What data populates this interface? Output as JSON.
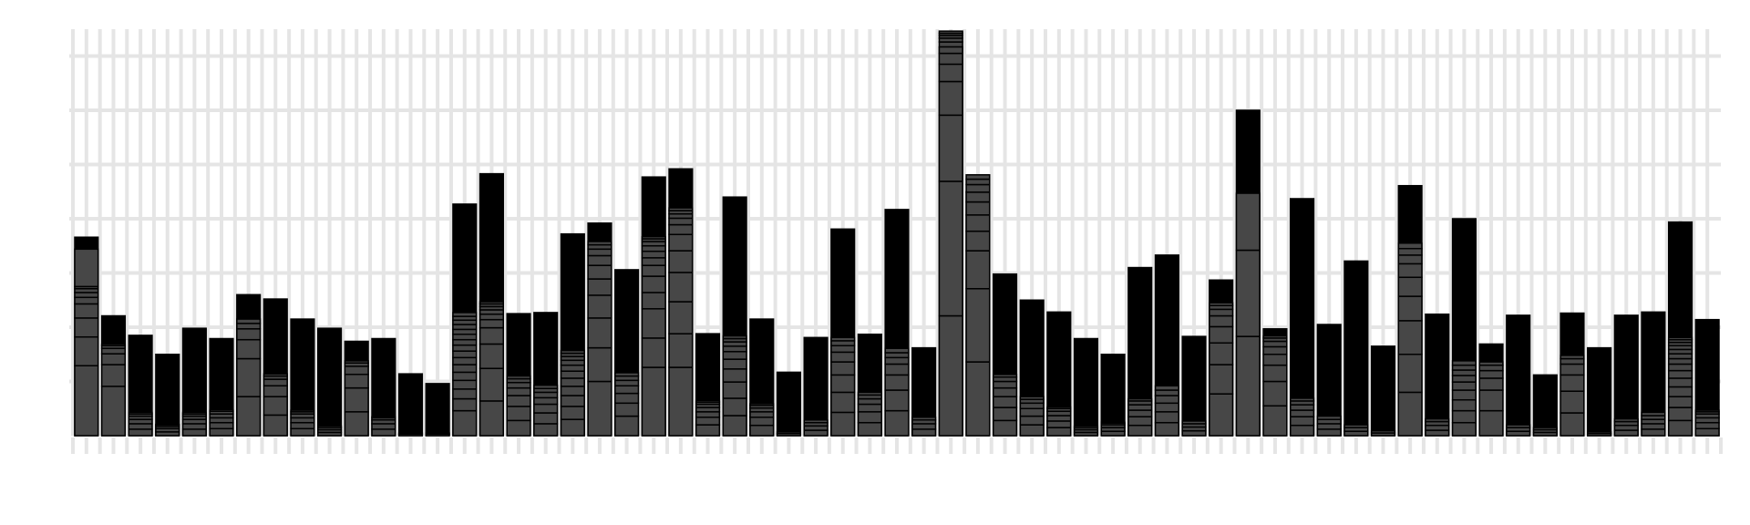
{
  "colors": {
    "background": "#ffffff",
    "grid": "#e5e5e5",
    "bar_top": "#000000",
    "bar_bottom": "#474747",
    "segment_stroke": "#000000"
  },
  "chart_data": {
    "type": "bar",
    "stacked": true,
    "grid": true,
    "legend": "none",
    "title": "",
    "xlabel": "",
    "ylabel": "",
    "ylim": [
      0,
      7.3
    ],
    "bars": [
      {
        "total": 3.66,
        "grey": 3.44,
        "segments": [
          1.29,
          0.53,
          0.35,
          0.26,
          0.12,
          0.09,
          0.07,
          0.04
        ]
      },
      {
        "total": 2.21,
        "grey": 1.69,
        "segments": [
          0.91,
          0.4,
          0.2,
          0.1,
          0.05,
          0.03
        ]
      },
      {
        "total": 1.85,
        "grey": 0.43,
        "segments": [
          0.12,
          0.1,
          0.08,
          0.06,
          0.04,
          0.03
        ]
      },
      {
        "total": 1.5,
        "grey": 0.21,
        "segments": [
          0.07,
          0.06,
          0.04,
          0.03
        ]
      },
      {
        "total": 1.98,
        "grey": 0.43,
        "segments": [
          0.12,
          0.1,
          0.08,
          0.06,
          0.04,
          0.03
        ]
      },
      {
        "total": 1.79,
        "grey": 0.48,
        "segments": [
          0.13,
          0.11,
          0.09,
          0.07,
          0.05,
          0.03
        ]
      },
      {
        "total": 2.6,
        "grey": 2.15,
        "segments": [
          0.72,
          0.7,
          0.35,
          0.2,
          0.1,
          0.08
        ]
      },
      {
        "total": 2.52,
        "grey": 1.14,
        "segments": [
          0.38,
          0.34,
          0.2,
          0.12,
          0.06,
          0.04
        ]
      },
      {
        "total": 2.15,
        "grey": 0.47,
        "segments": [
          0.13,
          0.11,
          0.09,
          0.07,
          0.04,
          0.03
        ]
      },
      {
        "total": 1.98,
        "grey": 0.18,
        "segments": [
          0.06,
          0.05,
          0.04,
          0.03
        ]
      },
      {
        "total": 1.74,
        "grey": 1.38,
        "segments": [
          0.44,
          0.44,
          0.25,
          0.15,
          0.06,
          0.04
        ]
      },
      {
        "total": 1.79,
        "grey": 0.35,
        "segments": [
          0.12,
          0.1,
          0.07,
          0.04
        ]
      },
      {
        "total": 1.14,
        "grey": 0.05,
        "segments": [
          0.03,
          0.02
        ]
      },
      {
        "total": 0.96,
        "grey": 0.05,
        "segments": [
          0.03,
          0.02
        ]
      },
      {
        "total": 4.27,
        "grey": 2.15,
        "segments": [
          0.46,
          0.22,
          0.18,
          0.16,
          0.15,
          0.14,
          0.13,
          0.12,
          0.11,
          0.1,
          0.1,
          0.09,
          0.09,
          0.08,
          0.07,
          0.07
        ]
      },
      {
        "total": 4.83,
        "grey": 2.47,
        "segments": [
          0.64,
          0.6,
          0.45,
          0.3,
          0.15,
          0.1,
          0.08,
          0.06,
          0.05,
          0.04
        ]
      },
      {
        "total": 2.25,
        "grey": 1.1,
        "segments": [
          0.28,
          0.26,
          0.2,
          0.14,
          0.1,
          0.07,
          0.05
        ]
      },
      {
        "total": 2.27,
        "grey": 0.93,
        "segments": [
          0.22,
          0.2,
          0.16,
          0.12,
          0.1,
          0.07,
          0.06
        ]
      },
      {
        "total": 3.72,
        "grey": 1.57,
        "segments": [
          0.3,
          0.24,
          0.2,
          0.17,
          0.15,
          0.13,
          0.11,
          0.09,
          0.07,
          0.06,
          0.05
        ]
      },
      {
        "total": 3.92,
        "grey": 3.58,
        "segments": [
          1.0,
          0.62,
          0.55,
          0.42,
          0.3,
          0.25,
          0.18,
          0.12,
          0.08,
          0.06
        ]
      },
      {
        "total": 3.06,
        "grey": 1.16,
        "segments": [
          0.36,
          0.24,
          0.18,
          0.14,
          0.1,
          0.08,
          0.06
        ]
      },
      {
        "total": 4.77,
        "grey": 3.67,
        "segments": [
          1.26,
          0.54,
          0.54,
          0.3,
          0.3,
          0.2,
          0.14,
          0.12,
          0.1,
          0.08,
          0.05,
          0.04
        ]
      },
      {
        "total": 4.92,
        "grey": 4.2,
        "segments": [
          1.26,
          0.62,
          0.59,
          0.54,
          0.4,
          0.3,
          0.18,
          0.12,
          0.08,
          0.06,
          0.05
        ]
      },
      {
        "total": 1.88,
        "grey": 0.65,
        "segments": [
          0.2,
          0.14,
          0.1,
          0.08,
          0.06,
          0.04,
          0.03
        ]
      },
      {
        "total": 4.4,
        "grey": 1.84,
        "segments": [
          0.37,
          0.32,
          0.3,
          0.24,
          0.18,
          0.14,
          0.1,
          0.08,
          0.06,
          0.05
        ]
      },
      {
        "total": 2.15,
        "grey": 0.59,
        "segments": [
          0.19,
          0.15,
          0.1,
          0.07,
          0.05,
          0.03
        ]
      },
      {
        "total": 1.17,
        "grey": 0.07,
        "segments": [
          0.04,
          0.03
        ]
      },
      {
        "total": 1.81,
        "grey": 0.29,
        "segments": [
          0.1,
          0.08,
          0.06,
          0.05
        ]
      },
      {
        "total": 3.81,
        "grey": 1.81,
        "segments": [
          0.43,
          0.37,
          0.32,
          0.24,
          0.18,
          0.12,
          0.09,
          0.06
        ]
      },
      {
        "total": 1.87,
        "grey": 0.8,
        "segments": [
          0.24,
          0.2,
          0.14,
          0.1,
          0.07,
          0.05
        ]
      },
      {
        "total": 4.17,
        "grey": 1.61,
        "segments": [
          0.46,
          0.38,
          0.28,
          0.2,
          0.12,
          0.09,
          0.08
        ]
      },
      {
        "total": 1.62,
        "grey": 0.34,
        "segments": [
          0.12,
          0.1,
          0.07,
          0.05
        ]
      },
      {
        "total": 7.16,
        "grey": 7.16,
        "segments": [
          2.21,
          2.48,
          1.22,
          0.62,
          0.32,
          0.2,
          0.12,
          0.09,
          0.07,
          0.05,
          0.04,
          0.04
        ]
      },
      {
        "total": 4.5,
        "grey": 4.21,
        "segments": [
          1.36,
          1.35,
          0.7,
          0.36,
          0.3,
          0.24,
          0.18,
          0.14,
          0.1,
          0.08
        ]
      },
      {
        "total": 2.98,
        "grey": 1.11,
        "segments": [
          0.28,
          0.24,
          0.2,
          0.16,
          0.12,
          0.08,
          0.05
        ]
      },
      {
        "total": 2.5,
        "grey": 0.7,
        "segments": [
          0.2,
          0.16,
          0.14,
          0.1,
          0.07,
          0.05
        ]
      },
      {
        "total": 2.28,
        "grey": 0.53,
        "segments": [
          0.15,
          0.12,
          0.1,
          0.08,
          0.05,
          0.03
        ]
      },
      {
        "total": 1.79,
        "grey": 0.18,
        "segments": [
          0.06,
          0.05,
          0.04,
          0.03
        ]
      },
      {
        "total": 1.5,
        "grey": 0.25,
        "segments": [
          0.08,
          0.07,
          0.05,
          0.03
        ]
      },
      {
        "total": 3.1,
        "grey": 0.68,
        "segments": [
          0.19,
          0.16,
          0.12,
          0.1,
          0.07,
          0.04
        ]
      },
      {
        "total": 3.33,
        "grey": 0.92,
        "segments": [
          0.24,
          0.2,
          0.16,
          0.14,
          0.1,
          0.08
        ]
      },
      {
        "total": 1.83,
        "grey": 0.27,
        "segments": [
          0.09,
          0.07,
          0.06,
          0.05
        ]
      },
      {
        "total": 2.87,
        "grey": 2.45,
        "segments": [
          0.77,
          0.54,
          0.4,
          0.3,
          0.2,
          0.12,
          0.07,
          0.05
        ]
      },
      {
        "total": 6.0,
        "grey": 4.47,
        "segments": [
          1.83,
          1.59,
          1.05
        ]
      },
      {
        "total": 1.97,
        "grey": 1.84,
        "segments": [
          0.55,
          0.45,
          0.3,
          0.2,
          0.14,
          0.1,
          0.06,
          0.04
        ]
      },
      {
        "total": 4.37,
        "grey": 0.69,
        "segments": [
          0.19,
          0.16,
          0.12,
          0.1,
          0.07,
          0.05
        ]
      },
      {
        "total": 2.05,
        "grey": 0.36,
        "segments": [
          0.12,
          0.1,
          0.08,
          0.06
        ]
      },
      {
        "total": 3.22,
        "grey": 0.2,
        "segments": [
          0.08,
          0.07,
          0.05
        ]
      },
      {
        "total": 1.65,
        "grey": 0.09,
        "segments": [
          0.05,
          0.04
        ]
      },
      {
        "total": 4.61,
        "grey": 3.55,
        "segments": [
          0.8,
          0.7,
          0.62,
          0.45,
          0.35,
          0.25,
          0.16,
          0.12,
          0.1
        ]
      },
      {
        "total": 2.24,
        "grey": 0.31,
        "segments": [
          0.1,
          0.09,
          0.07,
          0.05
        ]
      },
      {
        "total": 4.0,
        "grey": 1.38,
        "segments": [
          0.24,
          0.22,
          0.2,
          0.18,
          0.15,
          0.12,
          0.1,
          0.09,
          0.08
        ]
      },
      {
        "total": 1.69,
        "grey": 1.36,
        "segments": [
          0.46,
          0.38,
          0.22,
          0.14,
          0.1,
          0.06
        ]
      },
      {
        "total": 2.22,
        "grey": 0.2,
        "segments": [
          0.08,
          0.07,
          0.05
        ]
      },
      {
        "total": 1.12,
        "grey": 0.15,
        "segments": [
          0.06,
          0.05,
          0.04
        ]
      },
      {
        "total": 2.26,
        "grey": 1.48,
        "segments": [
          0.42,
          0.4,
          0.3,
          0.2,
          0.1,
          0.06
        ]
      },
      {
        "total": 1.62,
        "grey": 0.07,
        "segments": [
          0.04,
          0.03
        ]
      },
      {
        "total": 2.22,
        "grey": 0.31,
        "segments": [
          0.1,
          0.09,
          0.07,
          0.05
        ]
      },
      {
        "total": 2.28,
        "grey": 0.43,
        "segments": [
          0.12,
          0.1,
          0.08,
          0.07,
          0.06
        ]
      },
      {
        "total": 3.94,
        "grey": 1.75,
        "segments": [
          0.28,
          0.24,
          0.2,
          0.18,
          0.16,
          0.14,
          0.12,
          0.1,
          0.09,
          0.08,
          0.07,
          0.06,
          0.05,
          0.04
        ]
      },
      {
        "total": 2.14,
        "grey": 0.47,
        "segments": [
          0.13,
          0.11,
          0.09,
          0.07,
          0.04,
          0.03
        ]
      }
    ]
  }
}
